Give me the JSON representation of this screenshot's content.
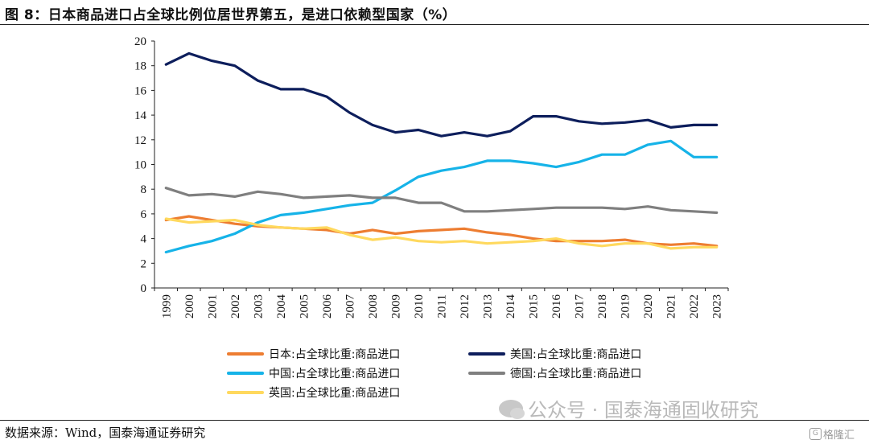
{
  "header": {
    "title": "图 8：日本商品进口占全球比例位居世界第五，是进口依赖型国家（%）"
  },
  "footer": {
    "source": "数据来源：Wind，国泰海通证券研究",
    "watermark": "公众号 · 国泰海通固收研究",
    "corner_logo": "格隆汇",
    "corner_logo_mark": "G"
  },
  "chart_data": {
    "type": "line",
    "title": "日本商品进口占全球比例位居世界第五，是进口依赖型国家（%）",
    "xlabel": "",
    "ylabel": "",
    "ylim": [
      0,
      20
    ],
    "yticks": [
      0,
      2,
      4,
      6,
      8,
      10,
      12,
      14,
      16,
      18,
      20
    ],
    "grid": false,
    "legend_position": "bottom",
    "x": [
      "1999",
      "2000",
      "2001",
      "2002",
      "2003",
      "2004",
      "2005",
      "2006",
      "2007",
      "2008",
      "2009",
      "2010",
      "2011",
      "2012",
      "2013",
      "2014",
      "2015",
      "2016",
      "2017",
      "2018",
      "2019",
      "2020",
      "2021",
      "2022",
      "2023"
    ],
    "series": [
      {
        "name": "日本:占全球比重:商品进口",
        "color": "#ED7D31",
        "values": [
          5.5,
          5.8,
          5.5,
          5.2,
          5.0,
          4.9,
          4.8,
          4.7,
          4.4,
          4.7,
          4.4,
          4.6,
          4.7,
          4.8,
          4.5,
          4.3,
          4.0,
          3.8,
          3.8,
          3.8,
          3.9,
          3.6,
          3.5,
          3.6,
          3.4
        ]
      },
      {
        "name": "美国:占全球比重:商品进口",
        "color": "#0D1E5C",
        "values": [
          18.1,
          19.0,
          18.4,
          18.0,
          16.8,
          16.1,
          16.1,
          15.5,
          14.2,
          13.2,
          12.6,
          12.8,
          12.3,
          12.6,
          12.3,
          12.7,
          13.9,
          13.9,
          13.5,
          13.3,
          13.4,
          13.6,
          13.0,
          13.2,
          13.2
        ]
      },
      {
        "name": "中国:占全球比重:商品进口",
        "color": "#16B3E8",
        "values": [
          2.9,
          3.4,
          3.8,
          4.4,
          5.3,
          5.9,
          6.1,
          6.4,
          6.7,
          6.9,
          7.9,
          9.0,
          9.5,
          9.8,
          10.3,
          10.3,
          10.1,
          9.8,
          10.2,
          10.8,
          10.8,
          11.6,
          11.9,
          10.6,
          10.6
        ]
      },
      {
        "name": "德国:占全球比重:商品进口",
        "color": "#7F7F7F",
        "values": [
          8.1,
          7.5,
          7.6,
          7.4,
          7.8,
          7.6,
          7.3,
          7.4,
          7.5,
          7.3,
          7.3,
          6.9,
          6.9,
          6.2,
          6.2,
          6.3,
          6.4,
          6.5,
          6.5,
          6.5,
          6.4,
          6.6,
          6.3,
          6.2,
          6.1
        ]
      },
      {
        "name": "英国:占全球比重:商品进口",
        "color": "#FFD95E",
        "values": [
          5.6,
          5.3,
          5.4,
          5.5,
          5.1,
          4.9,
          4.8,
          4.9,
          4.3,
          3.9,
          4.1,
          3.8,
          3.7,
          3.8,
          3.6,
          3.7,
          3.8,
          4.0,
          3.6,
          3.4,
          3.6,
          3.6,
          3.2,
          3.3,
          3.3
        ]
      }
    ]
  }
}
